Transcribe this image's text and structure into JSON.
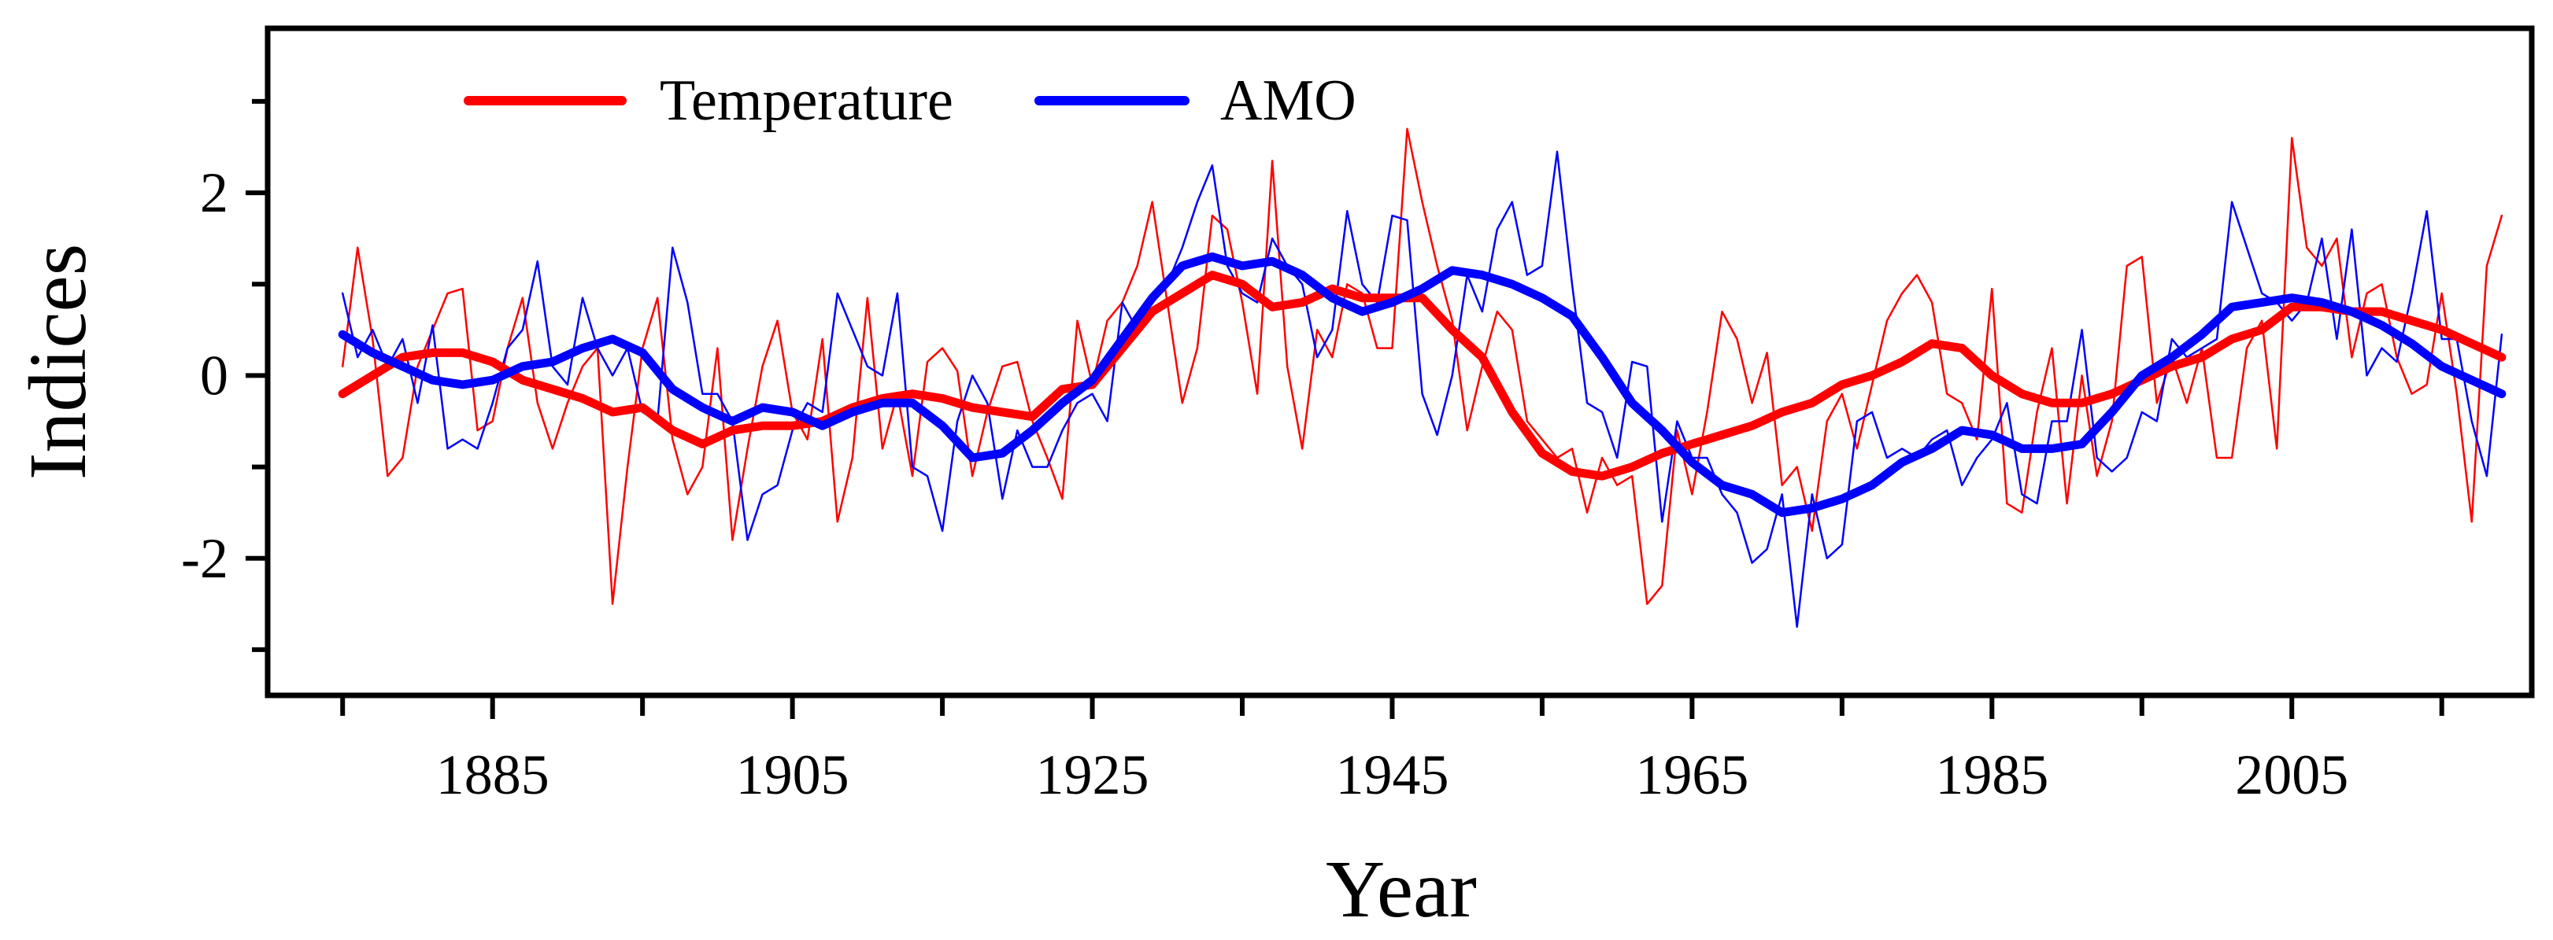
{
  "chart_data": {
    "type": "line",
    "title": "",
    "xlabel": "Year",
    "ylabel": "Indices",
    "xlim": [
      1870,
      2021
    ],
    "ylim": [
      -3.5,
      3.8
    ],
    "x_tick_labels": [
      "1885",
      "1905",
      "1925",
      "1945",
      "1965",
      "1985",
      "2005"
    ],
    "x_tick_values": [
      1885,
      1905,
      1925,
      1945,
      1965,
      1985,
      2005
    ],
    "y_tick_labels": [
      "2",
      "0",
      "-2"
    ],
    "y_tick_values": [
      2,
      0,
      -2
    ],
    "legend": {
      "position": "top-left",
      "entries": [
        "Temperature",
        "AMO"
      ]
    },
    "colors": {
      "temperature": "#ff0000",
      "amo": "#0000ff",
      "axis": "#000000"
    },
    "series": [
      {
        "name": "Temperature (annual)",
        "style": "thin",
        "x": [
          1875,
          1876,
          1877,
          1878,
          1879,
          1880,
          1881,
          1882,
          1883,
          1884,
          1885,
          1886,
          1887,
          1888,
          1889,
          1890,
          1891,
          1892,
          1893,
          1894,
          1895,
          1896,
          1897,
          1898,
          1899,
          1900,
          1901,
          1902,
          1903,
          1904,
          1905,
          1906,
          1907,
          1908,
          1909,
          1910,
          1911,
          1912,
          1913,
          1914,
          1915,
          1916,
          1917,
          1918,
          1919,
          1920,
          1921,
          1922,
          1923,
          1924,
          1925,
          1926,
          1927,
          1928,
          1929,
          1930,
          1931,
          1932,
          1933,
          1934,
          1935,
          1936,
          1937,
          1938,
          1939,
          1940,
          1941,
          1942,
          1943,
          1944,
          1945,
          1946,
          1947,
          1948,
          1949,
          1950,
          1951,
          1952,
          1953,
          1954,
          1955,
          1956,
          1957,
          1958,
          1959,
          1960,
          1961,
          1962,
          1963,
          1964,
          1965,
          1966,
          1967,
          1968,
          1969,
          1970,
          1971,
          1972,
          1973,
          1974,
          1975,
          1976,
          1977,
          1978,
          1979,
          1980,
          1981,
          1982,
          1983,
          1984,
          1985,
          1986,
          1987,
          1988,
          1989,
          1990,
          1991,
          1992,
          1993,
          1994,
          1995,
          1996,
          1997,
          1998,
          1999,
          2000,
          2001,
          2002,
          2003,
          2004,
          2005,
          2006,
          2007,
          2008,
          2009,
          2010,
          2011,
          2012,
          2013,
          2014,
          2015,
          2016,
          2017,
          2018,
          2019
        ],
        "values": [
          0.1,
          1.4,
          0.4,
          -1.1,
          -0.9,
          0.1,
          0.5,
          0.9,
          0.95,
          -0.6,
          -0.5,
          0.3,
          0.85,
          -0.3,
          -0.8,
          -0.3,
          0.1,
          0.3,
          -2.5,
          -1.0,
          0.3,
          0.85,
          -0.7,
          -1.3,
          -1.0,
          0.3,
          -1.8,
          -0.8,
          0.1,
          0.6,
          -0.4,
          -0.7,
          0.4,
          -1.6,
          -0.9,
          0.85,
          -0.8,
          -0.2,
          -1.1,
          0.15,
          0.3,
          0.05,
          -1.1,
          -0.4,
          0.1,
          0.15,
          -0.5,
          -0.9,
          -1.35,
          0.6,
          -0.1,
          0.6,
          0.8,
          1.2,
          1.9,
          0.8,
          -0.3,
          0.3,
          1.75,
          1.6,
          0.8,
          -0.2,
          2.35,
          0.1,
          -0.8,
          0.5,
          0.2,
          1.0,
          0.9,
          0.3,
          0.3,
          2.7,
          1.9,
          1.2,
          0.6,
          -0.6,
          0.1,
          0.7,
          0.5,
          -0.5,
          -0.7,
          -0.9,
          -0.8,
          -1.5,
          -0.9,
          -1.2,
          -1.1,
          -2.5,
          -2.3,
          -0.6,
          -1.3,
          -0.4,
          0.7,
          0.4,
          -0.3,
          0.25,
          -1.2,
          -1.0,
          -1.7,
          -0.5,
          -0.2,
          -0.8,
          -0.1,
          0.6,
          0.9,
          1.1,
          0.8,
          -0.2,
          -0.3,
          -0.7,
          0.95,
          -1.4,
          -1.5,
          -0.4,
          0.3,
          -1.4,
          0.0,
          -1.1,
          -0.5,
          1.2,
          1.3,
          -0.3,
          0.2,
          -0.3,
          0.3,
          -0.9,
          -0.9,
          0.3,
          0.6,
          -0.8,
          2.6,
          1.4,
          1.2,
          1.5,
          0.2,
          0.9,
          1.0,
          0.2,
          -0.2,
          -0.1,
          0.9,
          -0.2,
          -1.6,
          1.2,
          1.75
        ]
      },
      {
        "name": "AMO (annual)",
        "style": "thin",
        "x": [
          1875,
          1876,
          1877,
          1878,
          1879,
          1880,
          1881,
          1882,
          1883,
          1884,
          1885,
          1886,
          1887,
          1888,
          1889,
          1890,
          1891,
          1892,
          1893,
          1894,
          1895,
          1896,
          1897,
          1898,
          1899,
          1900,
          1901,
          1902,
          1903,
          1904,
          1905,
          1906,
          1907,
          1908,
          1909,
          1910,
          1911,
          1912,
          1913,
          1914,
          1915,
          1916,
          1917,
          1918,
          1919,
          1920,
          1921,
          1922,
          1923,
          1924,
          1925,
          1926,
          1927,
          1928,
          1929,
          1930,
          1931,
          1932,
          1933,
          1934,
          1935,
          1936,
          1937,
          1938,
          1939,
          1940,
          1941,
          1942,
          1943,
          1944,
          1945,
          1946,
          1947,
          1948,
          1949,
          1950,
          1951,
          1952,
          1953,
          1954,
          1955,
          1956,
          1957,
          1958,
          1959,
          1960,
          1961,
          1962,
          1963,
          1964,
          1965,
          1966,
          1967,
          1968,
          1969,
          1970,
          1971,
          1972,
          1973,
          1974,
          1975,
          1976,
          1977,
          1978,
          1979,
          1980,
          1981,
          1982,
          1983,
          1984,
          1985,
          1986,
          1987,
          1988,
          1989,
          1990,
          1991,
          1992,
          1993,
          1994,
          1995,
          1996,
          1997,
          1998,
          1999,
          2000,
          2001,
          2002,
          2003,
          2004,
          2005,
          2006,
          2007,
          2008,
          2009,
          2010,
          2011,
          2012,
          2013,
          2014,
          2015,
          2016,
          2017,
          2018,
          2019
        ],
        "values": [
          0.9,
          0.2,
          0.5,
          0.1,
          0.4,
          -0.3,
          0.55,
          -0.8,
          -0.7,
          -0.8,
          -0.3,
          0.3,
          0.5,
          1.25,
          0.1,
          -0.1,
          0.85,
          0.3,
          0.0,
          0.3,
          -0.4,
          -0.5,
          1.4,
          0.8,
          -0.2,
          -0.2,
          -0.5,
          -1.8,
          -1.3,
          -1.2,
          -0.6,
          -0.3,
          -0.4,
          0.9,
          0.5,
          0.1,
          0.0,
          0.9,
          -1.0,
          -1.1,
          -1.7,
          -0.5,
          0.0,
          -0.3,
          -1.35,
          -0.6,
          -1.0,
          -1.0,
          -0.6,
          -0.3,
          -0.2,
          -0.5,
          0.8,
          0.5,
          0.9,
          1.0,
          1.4,
          1.9,
          2.3,
          1.2,
          0.9,
          0.8,
          1.5,
          1.2,
          1.0,
          0.2,
          0.5,
          1.8,
          1.0,
          0.8,
          1.75,
          1.7,
          -0.2,
          -0.65,
          0.0,
          1.1,
          0.7,
          1.6,
          1.9,
          1.1,
          1.2,
          2.45,
          1.0,
          -0.3,
          -0.4,
          -0.9,
          0.15,
          0.1,
          -1.6,
          -0.5,
          -0.9,
          -0.9,
          -1.3,
          -1.5,
          -2.05,
          -1.9,
          -1.3,
          -2.75,
          -1.3,
          -2.0,
          -1.85,
          -0.5,
          -0.4,
          -0.9,
          -0.8,
          -0.9,
          -0.7,
          -0.6,
          -1.2,
          -0.9,
          -0.7,
          -0.3,
          -1.3,
          -1.4,
          -0.5,
          -0.5,
          0.5,
          -0.9,
          -1.05,
          -0.9,
          -0.4,
          -0.5,
          0.4,
          0.2,
          0.3,
          0.4,
          1.9,
          1.4,
          0.9,
          0.8,
          0.6,
          0.8,
          1.5,
          0.4,
          1.6,
          0.0,
          0.3,
          0.15,
          0.9,
          1.8,
          0.4,
          0.4,
          -0.5,
          -1.1,
          0.45
        ]
      },
      {
        "name": "Temperature",
        "style": "smoothed",
        "x": [
          1875,
          1877,
          1879,
          1881,
          1883,
          1885,
          1887,
          1889,
          1891,
          1893,
          1895,
          1897,
          1899,
          1901,
          1903,
          1905,
          1907,
          1909,
          1911,
          1913,
          1915,
          1917,
          1919,
          1921,
          1923,
          1925,
          1927,
          1929,
          1931,
          1933,
          1935,
          1937,
          1939,
          1941,
          1943,
          1945,
          1947,
          1949,
          1951,
          1953,
          1955,
          1957,
          1959,
          1961,
          1963,
          1965,
          1967,
          1969,
          1971,
          1973,
          1975,
          1977,
          1979,
          1981,
          1983,
          1985,
          1987,
          1989,
          1991,
          1993,
          1995,
          1997,
          1999,
          2001,
          2003,
          2005,
          2007,
          2009,
          2011,
          2013,
          2015,
          2017,
          2019
        ],
        "values": [
          -0.2,
          0.0,
          0.2,
          0.25,
          0.25,
          0.15,
          -0.05,
          -0.15,
          -0.25,
          -0.4,
          -0.35,
          -0.6,
          -0.75,
          -0.6,
          -0.55,
          -0.55,
          -0.5,
          -0.35,
          -0.25,
          -0.2,
          -0.25,
          -0.35,
          -0.4,
          -0.45,
          -0.15,
          -0.1,
          0.3,
          0.7,
          0.9,
          1.1,
          1.0,
          0.75,
          0.8,
          0.95,
          0.85,
          0.85,
          0.85,
          0.5,
          0.2,
          -0.4,
          -0.85,
          -1.05,
          -1.1,
          -1.0,
          -0.85,
          -0.75,
          -0.65,
          -0.55,
          -0.4,
          -0.3,
          -0.1,
          0.0,
          0.15,
          0.35,
          0.3,
          0.0,
          -0.2,
          -0.3,
          -0.3,
          -0.2,
          -0.05,
          0.1,
          0.2,
          0.4,
          0.5,
          0.75,
          0.75,
          0.7,
          0.7,
          0.6,
          0.5,
          0.35,
          0.2
        ]
      },
      {
        "name": "AMO",
        "style": "smoothed",
        "x": [
          1875,
          1877,
          1879,
          1881,
          1883,
          1885,
          1887,
          1889,
          1891,
          1893,
          1895,
          1897,
          1899,
          1901,
          1903,
          1905,
          1907,
          1909,
          1911,
          1913,
          1915,
          1917,
          1919,
          1921,
          1923,
          1925,
          1927,
          1929,
          1931,
          1933,
          1935,
          1937,
          1939,
          1941,
          1943,
          1945,
          1947,
          1949,
          1951,
          1953,
          1955,
          1957,
          1959,
          1961,
          1963,
          1965,
          1967,
          1969,
          1971,
          1973,
          1975,
          1977,
          1979,
          1981,
          1983,
          1985,
          1987,
          1989,
          1991,
          1993,
          1995,
          1997,
          1999,
          2001,
          2003,
          2005,
          2007,
          2009,
          2011,
          2013,
          2015,
          2017,
          2019
        ],
        "values": [
          0.45,
          0.25,
          0.1,
          -0.05,
          -0.1,
          -0.05,
          0.1,
          0.15,
          0.3,
          0.4,
          0.25,
          -0.15,
          -0.35,
          -0.5,
          -0.35,
          -0.4,
          -0.55,
          -0.4,
          -0.3,
          -0.3,
          -0.55,
          -0.9,
          -0.85,
          -0.6,
          -0.3,
          -0.05,
          0.4,
          0.85,
          1.2,
          1.3,
          1.2,
          1.25,
          1.1,
          0.85,
          0.7,
          0.8,
          0.95,
          1.15,
          1.1,
          1.0,
          0.85,
          0.65,
          0.2,
          -0.3,
          -0.6,
          -0.95,
          -1.2,
          -1.3,
          -1.5,
          -1.45,
          -1.35,
          -1.2,
          -0.95,
          -0.8,
          -0.6,
          -0.65,
          -0.8,
          -0.8,
          -0.75,
          -0.4,
          0.0,
          0.2,
          0.45,
          0.75,
          0.8,
          0.85,
          0.8,
          0.7,
          0.55,
          0.35,
          0.1,
          -0.05,
          -0.2
        ]
      }
    ]
  }
}
